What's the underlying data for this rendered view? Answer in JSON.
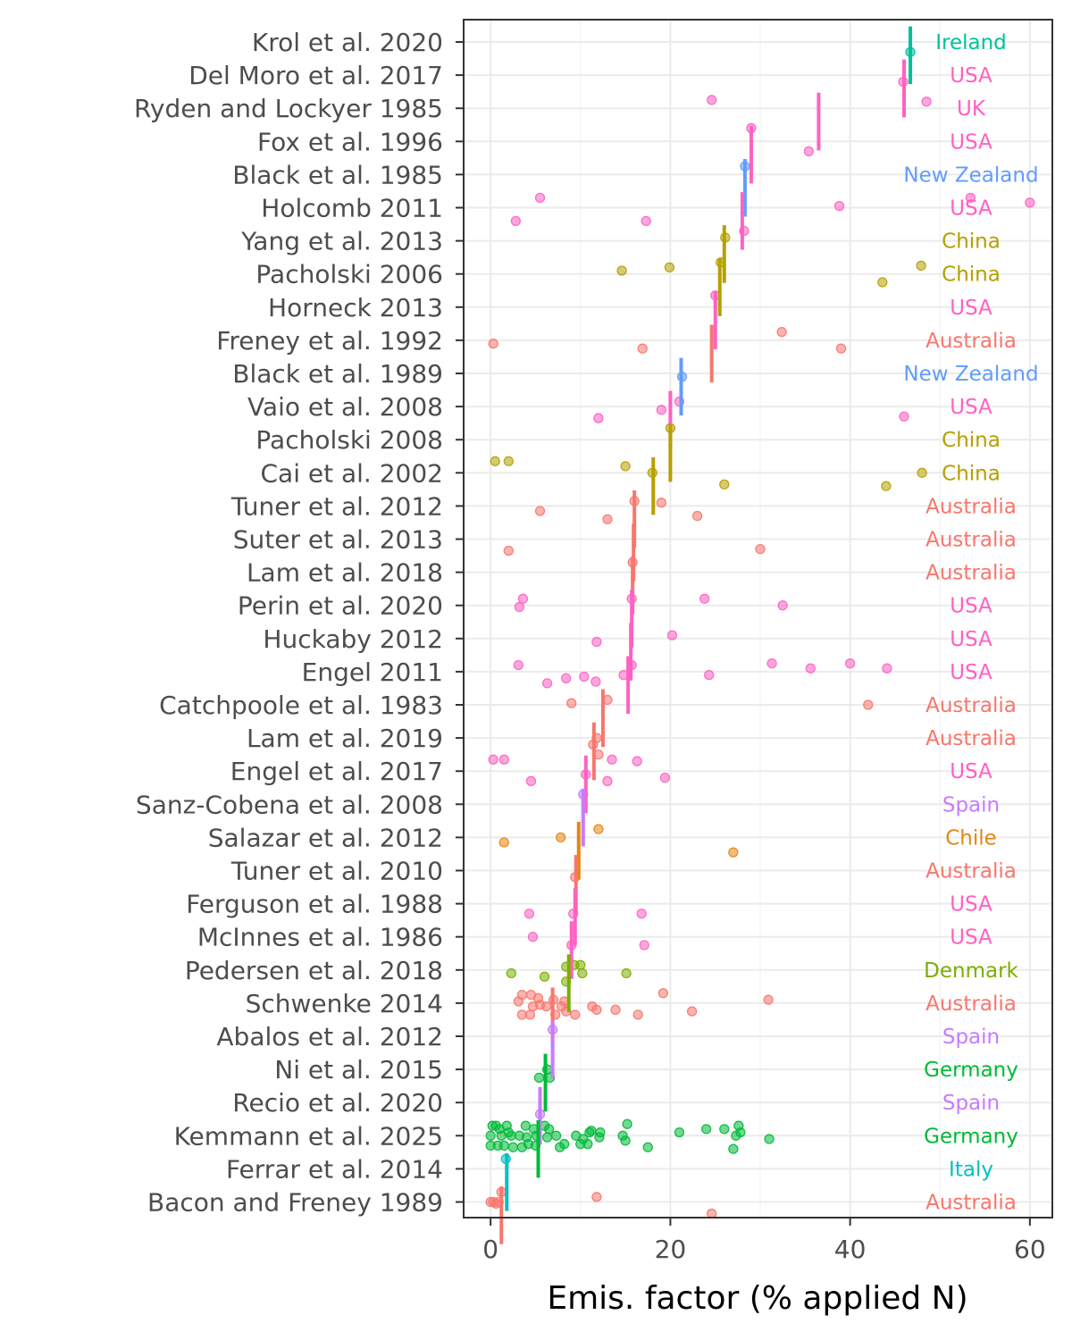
{
  "chart_data": {
    "type": "scatter",
    "xlabel": "Emis. factor (% applied N)",
    "xlim": [
      -3,
      62.5
    ],
    "x_ticks": [
      "0",
      "20",
      "40",
      "60"
    ],
    "grid": true,
    "legend": "none",
    "point_style": "semi-transparent circles per measurement, vertical bar at study mean",
    "country_colors": {
      "Australia": "#F8766D",
      "Chile": "#E68613",
      "China": "#B5A000",
      "Denmark": "#7CAE00",
      "Germany": "#00BA38",
      "Ireland": "#00C19A",
      "Italy": "#00BFC4",
      "New Zealand": "#619CFF",
      "Spain": "#C77CFF",
      "UK": "#FF61C3",
      "USA": "#FF61C3"
    },
    "studies": [
      {
        "label": "Krol et al. 2020",
        "country": "Ireland",
        "mean": 46.7,
        "points": [
          [
            46.7,
            0.3
          ]
        ]
      },
      {
        "label": "Del Moro et al. 2017",
        "country": "USA",
        "mean": 46.0,
        "points": [
          [
            45.9,
            0.2
          ]
        ]
      },
      {
        "label": "Ryden and Lockyer 1985",
        "country": "UK",
        "mean": 36.5,
        "points": [
          [
            24.6,
            -0.25
          ],
          [
            48.5,
            -0.2
          ]
        ]
      },
      {
        "label": "Fox et al. 1996",
        "country": "USA",
        "mean": 29.0,
        "points": [
          [
            35.4,
            0.3
          ],
          [
            29.0,
            -0.4
          ]
        ]
      },
      {
        "label": "Black et al. 1985",
        "country": "New Zealand",
        "mean": 28.3,
        "points": [
          [
            28.3,
            -0.25
          ]
        ]
      },
      {
        "label": "Holcomb 2011",
        "country": "USA",
        "mean": 28.0,
        "points": [
          [
            2.8,
            0.4
          ],
          [
            17.3,
            0.4
          ],
          [
            5.5,
            -0.3
          ],
          [
            38.8,
            -0.05
          ],
          [
            53.4,
            -0.3
          ],
          [
            60.0,
            -0.15
          ],
          [
            28.2,
            0.7
          ]
        ]
      },
      {
        "label": "Yang et al. 2013",
        "country": "China",
        "mean": 26.0,
        "points": [
          [
            26.1,
            -0.1
          ]
        ]
      },
      {
        "label": "Pacholski 2006",
        "country": "China",
        "mean": 25.5,
        "points": [
          [
            14.6,
            -0.1
          ],
          [
            19.9,
            -0.2
          ],
          [
            43.6,
            0.25
          ],
          [
            47.9,
            -0.25
          ],
          [
            25.6,
            -0.35
          ]
        ]
      },
      {
        "label": "Horneck 2013",
        "country": "USA",
        "mean": 25.0,
        "points": [
          [
            25.0,
            -0.35
          ]
        ]
      },
      {
        "label": "Freney et al. 1992",
        "country": "Australia",
        "mean": 24.6,
        "points": [
          [
            0.3,
            0.1
          ],
          [
            16.9,
            0.25
          ],
          [
            32.4,
            -0.25
          ],
          [
            39.0,
            0.25
          ]
        ]
      },
      {
        "label": "Black et al. 1989",
        "country": "New Zealand",
        "mean": 21.2,
        "points": [
          [
            21.3,
            0.1
          ]
        ]
      },
      {
        "label": "Vaio et al. 2008",
        "country": "USA",
        "mean": 20.0,
        "points": [
          [
            12.0,
            0.35
          ],
          [
            19.0,
            0.1
          ],
          [
            21.0,
            -0.15
          ],
          [
            46.0,
            0.3
          ]
        ]
      },
      {
        "label": "Pacholski 2008",
        "country": "China",
        "mean": 20.0,
        "points": [
          [
            20.0,
            -0.35
          ]
        ]
      },
      {
        "label": "Cai et al. 2002",
        "country": "China",
        "mean": 18.1,
        "points": [
          [
            0.5,
            -0.35
          ],
          [
            2.0,
            -0.35
          ],
          [
            15.0,
            -0.2
          ],
          [
            18.0,
            0.0
          ],
          [
            26.0,
            0.35
          ],
          [
            44.0,
            0.4
          ],
          [
            48.0,
            0.0
          ]
        ]
      },
      {
        "label": "Tuner et al. 2012",
        "country": "Australia",
        "mean": 16.0,
        "points": [
          [
            5.5,
            0.15
          ],
          [
            13.0,
            0.4
          ],
          [
            19.0,
            -0.1
          ],
          [
            23.0,
            0.3
          ],
          [
            16.0,
            -0.15
          ]
        ]
      },
      {
        "label": "Suter et al. 2013",
        "country": "Australia",
        "mean": 15.9,
        "points": [
          [
            2.0,
            0.35
          ],
          [
            30.0,
            0.3
          ]
        ]
      },
      {
        "label": "Lam et al. 2018",
        "country": "Australia",
        "mean": 15.8,
        "points": [
          [
            15.8,
            -0.3
          ]
        ]
      },
      {
        "label": "Perin et al. 2020",
        "country": "USA",
        "mean": 15.7,
        "points": [
          [
            3.2,
            0.05
          ],
          [
            3.6,
            -0.2
          ],
          [
            15.7,
            -0.2
          ],
          [
            23.8,
            -0.2
          ],
          [
            32.5,
            0.0
          ]
        ]
      },
      {
        "label": "Huckaby 2012",
        "country": "USA",
        "mean": 15.6,
        "points": [
          [
            11.8,
            0.1
          ],
          [
            20.2,
            -0.1
          ]
        ]
      },
      {
        "label": "Engel 2011",
        "country": "USA",
        "mean": 15.3,
        "points": [
          [
            6.3,
            0.35
          ],
          [
            8.4,
            0.2
          ],
          [
            10.4,
            0.15
          ],
          [
            11.7,
            0.3
          ],
          [
            14.8,
            0.1
          ],
          [
            24.3,
            0.1
          ],
          [
            35.6,
            -0.1
          ],
          [
            40.0,
            -0.25
          ],
          [
            44.1,
            -0.1
          ],
          [
            3.1,
            -0.2
          ],
          [
            15.7,
            -0.2
          ],
          [
            31.3,
            -0.25
          ]
        ]
      },
      {
        "label": "Catchpoole et al. 1983",
        "country": "Australia",
        "mean": 12.5,
        "points": [
          [
            9.0,
            -0.05
          ],
          [
            13.0,
            -0.15
          ],
          [
            42.0,
            0.0
          ]
        ]
      },
      {
        "label": "Lam et al. 2019",
        "country": "Australia",
        "mean": 11.5,
        "points": [
          [
            11.4,
            0.2
          ],
          [
            12.0,
            0.5
          ],
          [
            11.8,
            0.0
          ]
        ]
      },
      {
        "label": "Engel et al. 2017",
        "country": "USA",
        "mean": 10.6,
        "points": [
          [
            4.5,
            0.3
          ],
          [
            10.6,
            0.1
          ],
          [
            13.0,
            0.3
          ],
          [
            19.4,
            0.2
          ],
          [
            0.3,
            -0.35
          ],
          [
            1.5,
            -0.35
          ],
          [
            13.5,
            -0.35
          ],
          [
            16.3,
            -0.3
          ]
        ]
      },
      {
        "label": "Sanz-Cobena et al. 2008",
        "country": "Spain",
        "mean": 10.3,
        "points": [
          [
            10.3,
            -0.3
          ]
        ]
      },
      {
        "label": "Salazar et al. 2012",
        "country": "Chile",
        "mean": 9.8,
        "points": [
          [
            1.5,
            0.15
          ],
          [
            7.8,
            0.0
          ],
          [
            12.0,
            -0.25
          ],
          [
            27.0,
            0.45
          ]
        ]
      },
      {
        "label": "Tuner et al. 2010",
        "country": "Australia",
        "mean": 9.5,
        "points": [
          [
            9.4,
            0.2
          ]
        ]
      },
      {
        "label": "Ferguson et al. 1988",
        "country": "USA",
        "mean": 9.4,
        "points": [
          [
            4.3,
            0.3
          ],
          [
            9.2,
            0.3
          ],
          [
            16.8,
            0.3
          ]
        ]
      },
      {
        "label": "McInnes et al. 1986",
        "country": "USA",
        "mean": 9.0,
        "points": [
          [
            4.7,
            0.0
          ],
          [
            9.0,
            0.25
          ],
          [
            17.1,
            0.25
          ]
        ]
      },
      {
        "label": "Pedersen et al. 2018",
        "country": "Denmark",
        "mean": 8.7,
        "points": [
          [
            2.3,
            0.1
          ],
          [
            6.0,
            0.2
          ],
          [
            8.4,
            0.35
          ],
          [
            10.2,
            0.1
          ],
          [
            15.1,
            0.1
          ],
          [
            8.4,
            -0.1
          ],
          [
            10.0,
            -0.15
          ],
          [
            9.3,
            -0.15
          ]
        ]
      },
      {
        "label": "Schwenke 2014",
        "country": "Australia",
        "mean": 6.9,
        "points": [
          [
            3.5,
            0.35
          ],
          [
            4.4,
            0.35
          ],
          [
            7.2,
            0.35
          ],
          [
            9.4,
            0.35
          ],
          [
            3.1,
            -0.05
          ],
          [
            4.7,
            0.1
          ],
          [
            6.2,
            0.1
          ],
          [
            7.9,
            0.1
          ],
          [
            8.4,
            0.25
          ],
          [
            5.5,
            0.05
          ],
          [
            7.0,
            -0.1
          ],
          [
            3.5,
            -0.25
          ],
          [
            4.5,
            -0.25
          ],
          [
            5.3,
            -0.15
          ],
          [
            8.2,
            -0.05
          ],
          [
            11.3,
            0.1
          ],
          [
            11.8,
            0.2
          ],
          [
            13.9,
            0.2
          ],
          [
            16.4,
            0.35
          ],
          [
            22.4,
            0.25
          ],
          [
            30.9,
            -0.1
          ],
          [
            19.2,
            -0.3
          ]
        ]
      },
      {
        "label": "Abalos et al. 2012",
        "country": "Spain",
        "mean": 6.9,
        "points": [
          [
            6.9,
            -0.2
          ]
        ]
      },
      {
        "label": "Ni et al. 2015",
        "country": "Germany",
        "mean": 6.1,
        "points": [
          [
            5.4,
            0.25
          ],
          [
            6.6,
            0.25
          ],
          [
            6.3,
            0.0
          ]
        ]
      },
      {
        "label": "Recio et al. 2020",
        "country": "Spain",
        "mean": 5.5,
        "points": [
          [
            5.5,
            0.35
          ]
        ]
      },
      {
        "label": "Kemmann et al. 2025",
        "country": "Germany",
        "mean": 5.3,
        "points": [
          [
            0.0,
            0.3
          ],
          [
            0.8,
            0.3
          ],
          [
            1.5,
            0.3
          ],
          [
            2.5,
            0.35
          ],
          [
            3.5,
            0.35
          ],
          [
            4.2,
            0.25
          ],
          [
            5.0,
            0.3
          ],
          [
            7.7,
            0.35
          ],
          [
            8.2,
            0.25
          ],
          [
            10.0,
            0.25
          ],
          [
            10.8,
            0.25
          ],
          [
            15.0,
            0.15
          ],
          [
            17.5,
            0.35
          ],
          [
            27.0,
            0.4
          ],
          [
            31.0,
            0.1
          ],
          [
            0.0,
            0.0
          ],
          [
            1.2,
            0.0
          ],
          [
            2.3,
            0.0
          ],
          [
            3.2,
            0.0
          ],
          [
            4.0,
            0.05
          ],
          [
            5.1,
            0.0
          ],
          [
            6.3,
            0.05
          ],
          [
            7.3,
            0.0
          ],
          [
            9.5,
            0.0
          ],
          [
            10.3,
            0.1
          ],
          [
            11.0,
            -0.1
          ],
          [
            12.1,
            0.05
          ],
          [
            12.2,
            -0.1
          ],
          [
            14.7,
            0.0
          ],
          [
            21.0,
            -0.1
          ],
          [
            24.0,
            -0.2
          ],
          [
            26.0,
            -0.2
          ],
          [
            27.3,
            0.0
          ],
          [
            27.6,
            -0.3
          ],
          [
            27.8,
            -0.1
          ],
          [
            0.2,
            -0.3
          ],
          [
            0.6,
            -0.3
          ],
          [
            1.0,
            -0.2
          ],
          [
            1.8,
            -0.3
          ],
          [
            2.0,
            -0.1
          ],
          [
            3.9,
            -0.3
          ],
          [
            4.8,
            -0.2
          ],
          [
            6.0,
            -0.3
          ],
          [
            6.5,
            -0.2
          ],
          [
            11.2,
            -0.15
          ],
          [
            15.2,
            -0.35
          ]
        ]
      },
      {
        "label": "Ferrar et al. 2014",
        "country": "Italy",
        "mean": 1.8,
        "points": [
          [
            1.7,
            -0.3
          ]
        ]
      },
      {
        "label": "Bacon and Freney 1989",
        "country": "Australia",
        "mean": 1.2,
        "points": [
          [
            0.0,
            0.0
          ],
          [
            0.3,
            0.0
          ],
          [
            0.6,
            0.05
          ],
          [
            0.9,
            0.0
          ],
          [
            1.2,
            -0.3
          ],
          [
            11.8,
            -0.15
          ],
          [
            24.6,
            0.35
          ]
        ]
      }
    ]
  }
}
